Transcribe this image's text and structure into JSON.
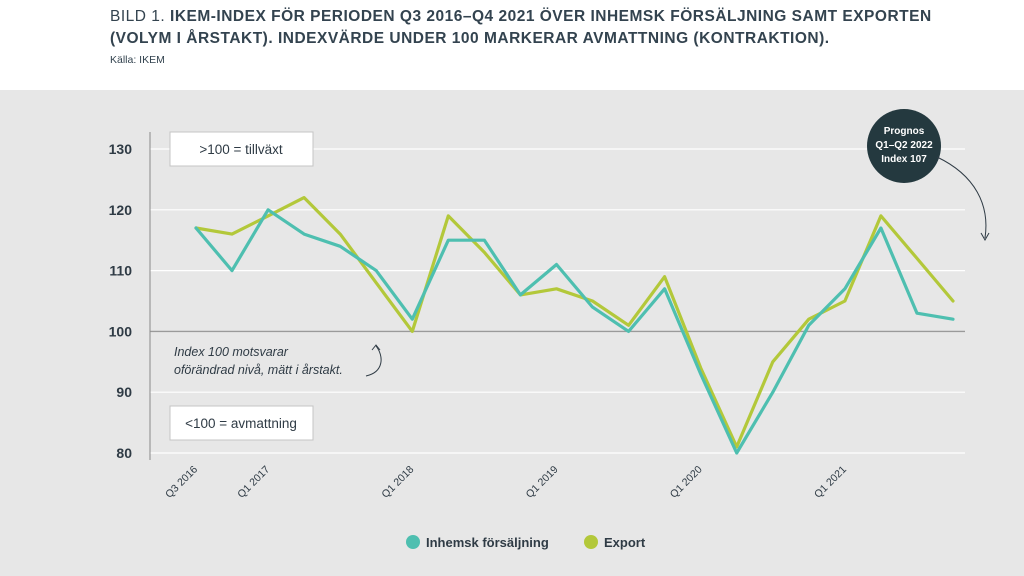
{
  "header": {
    "lead": "BILD 1.",
    "title_bold": "IKEM-INDEX FÖR PERIODEN Q3 2016–Q4 2021 ÖVER INHEMSK FÖRSÄLJNING SAMT EXPORTEN (VOLYM I ÅRSTAKT). INDEXVÄRDE UNDER 100 MARKERAR AVMATTNING (KONTRAKTION).",
    "source": "Källa: IKEM"
  },
  "annotations": {
    "growth_box": ">100 = tillväxt",
    "slowdown_box": "<100 = avmattning",
    "index_note_line1": "Index 100 motsvarar",
    "index_note_line2": "oförändrad nivå, mätt i årstakt.",
    "forecast_line1": "Prognos",
    "forecast_line2": "Q1–Q2 2022",
    "forecast_line3": "Index 107"
  },
  "colors": {
    "inhemsk": "#4ebfb0",
    "export": "#b3c83a",
    "forecast_circle": "#24393f",
    "reference_line": "#9a9a9a"
  },
  "chart_data": {
    "type": "line",
    "title": "IKEM-index Q3 2016–Q4 2021",
    "xlabel": "",
    "ylabel": "",
    "ylim": [
      80,
      130
    ],
    "yticks": [
      80,
      90,
      100,
      110,
      120,
      130
    ],
    "x": [
      "Q3 2016",
      "Q4 2016",
      "Q1 2017",
      "Q2 2017",
      "Q3 2017",
      "Q4 2017",
      "Q1 2018",
      "Q2 2018",
      "Q3 2018",
      "Q4 2018",
      "Q1 2019",
      "Q2 2019",
      "Q3 2019",
      "Q4 2019",
      "Q1 2020",
      "Q2 2020",
      "Q3 2020",
      "Q4 2020",
      "Q1 2021",
      "Q2 2021",
      "Q3 2021",
      "Q4 2021"
    ],
    "xtick_labels": [
      {
        "index": 0,
        "label": "Q3 2016"
      },
      {
        "index": 2,
        "label": "Q1 2017"
      },
      {
        "index": 6,
        "label": "Q1 2018"
      },
      {
        "index": 10,
        "label": "Q1 2019"
      },
      {
        "index": 14,
        "label": "Q1 2020"
      },
      {
        "index": 18,
        "label": "Q1 2021"
      }
    ],
    "series": [
      {
        "name": "Inhemsk försäljning",
        "values": [
          117,
          110,
          120,
          116,
          114,
          110,
          102,
          115,
          115,
          106,
          111,
          104,
          100,
          107,
          93,
          80,
          90,
          101,
          107,
          117,
          103,
          102
        ]
      },
      {
        "name": "Export",
        "values": [
          117,
          116,
          119,
          122,
          116,
          108,
          100,
          119,
          113,
          106,
          107,
          105,
          101,
          109,
          94,
          81,
          95,
          102,
          105,
          119,
          112,
          105
        ]
      }
    ],
    "reference_line": 100,
    "legend_position": "bottom-center"
  }
}
